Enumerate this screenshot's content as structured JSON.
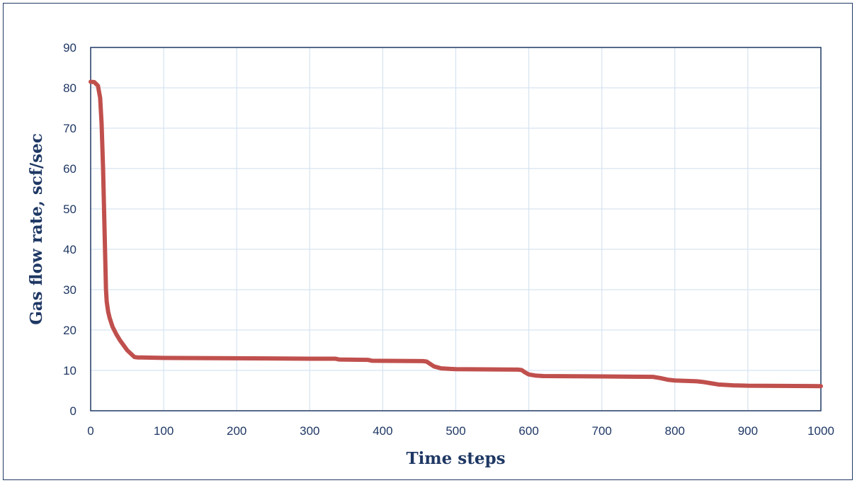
{
  "chart_data": {
    "type": "line",
    "title": "",
    "xlabel": "Time steps",
    "ylabel": "Gas flow rate, scf/sec",
    "xlim": [
      0,
      1000
    ],
    "ylim": [
      0,
      90
    ],
    "x_ticks": [
      0,
      100,
      200,
      300,
      400,
      500,
      600,
      700,
      800,
      900,
      1000
    ],
    "y_ticks": [
      0,
      10,
      20,
      30,
      40,
      50,
      60,
      70,
      80,
      90
    ],
    "grid": true,
    "legend": "none",
    "series": [
      {
        "color": "#c0504d",
        "x": [
          0,
          5,
          10,
          13,
          15,
          17,
          19,
          21,
          22,
          24,
          26,
          30,
          35,
          40,
          50,
          60,
          65,
          70,
          100,
          200,
          300,
          335,
          340,
          380,
          385,
          455,
          460,
          465,
          470,
          480,
          500,
          585,
          590,
          595,
          600,
          610,
          620,
          700,
          770,
          780,
          790,
          800,
          830,
          840,
          850,
          860,
          880,
          900,
          1000
        ],
        "y": [
          81.5,
          81.4,
          80.5,
          77.5,
          71,
          60,
          45,
          30,
          27,
          24.5,
          23,
          20.8,
          19,
          17.5,
          15,
          13.3,
          13.2,
          13.2,
          13.1,
          13.0,
          12.9,
          12.9,
          12.7,
          12.6,
          12.4,
          12.3,
          12.2,
          11.6,
          11.0,
          10.5,
          10.3,
          10.2,
          10.1,
          9.5,
          9.0,
          8.7,
          8.6,
          8.5,
          8.4,
          8.1,
          7.7,
          7.5,
          7.3,
          7.1,
          6.8,
          6.5,
          6.3,
          6.2,
          6.1
        ]
      }
    ]
  }
}
